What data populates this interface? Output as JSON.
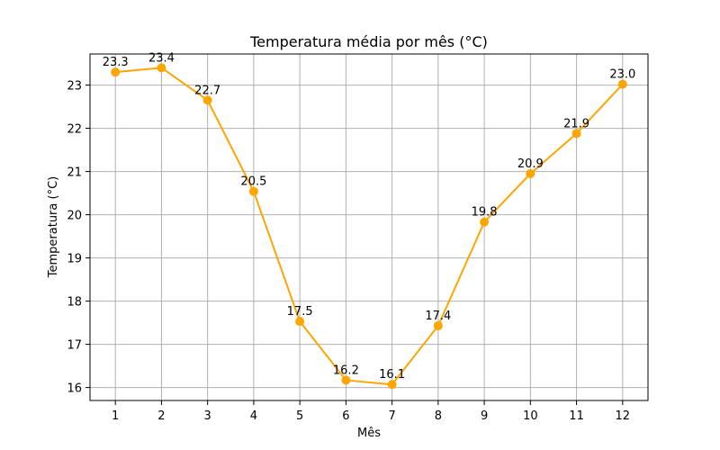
{
  "chart_data": {
    "type": "line",
    "title": "Temperatura média por mês (°C)",
    "xlabel": "Mês",
    "ylabel": "Temperatura (°C)",
    "x": [
      1,
      2,
      3,
      4,
      5,
      6,
      7,
      8,
      9,
      10,
      11,
      12
    ],
    "x_tick_labels": [
      "1",
      "2",
      "3",
      "4",
      "5",
      "6",
      "7",
      "8",
      "9",
      "10",
      "11",
      "12"
    ],
    "y_ticks": [
      16,
      17,
      18,
      19,
      20,
      21,
      22,
      23
    ],
    "y_tick_labels": [
      "16",
      "17",
      "18",
      "19",
      "20",
      "21",
      "22",
      "23"
    ],
    "series": [
      {
        "values": [
          23.3,
          23.4,
          22.65,
          20.54,
          17.53,
          16.17,
          16.07,
          17.43,
          19.83,
          20.95,
          21.88,
          23.02
        ],
        "data_labels": [
          "23.3",
          "23.4",
          "22.7",
          "20.5",
          "17.5",
          "16.2",
          "16.1",
          "17.4",
          "19.8",
          "20.9",
          "21.9",
          "23.0"
        ],
        "color": "#ffa500"
      }
    ],
    "xlim": [
      0.45,
      12.55
    ],
    "ylim": [
      15.7,
      23.72
    ],
    "grid": true,
    "marker": "circle"
  }
}
